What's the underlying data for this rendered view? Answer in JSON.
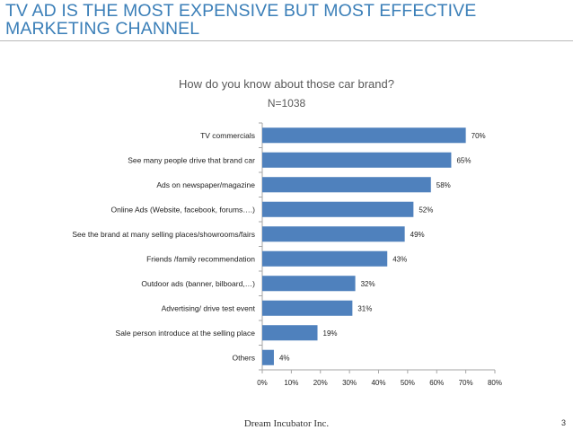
{
  "slide": {
    "title_line1": "TV AD IS THE MOST EXPENSIVE BUT MOST EFFECTIVE",
    "title_line2": "MARKETING CHANNEL",
    "footer": "Dream Incubator Inc.",
    "page_number": "3"
  },
  "colors": {
    "bar": "#4f81bd",
    "title": "#3b7fb8",
    "axis": "#a6a6a6"
  },
  "chart_data": {
    "type": "bar",
    "orientation": "horizontal",
    "title": "How do you know about those car brand?",
    "subtitle": "N=1038",
    "categories": [
      "TV commercials",
      "See many people drive that brand car",
      "Ads on newspaper/magazine",
      "Online Ads (Website, facebook, forums….)",
      "See the brand at many selling places/showrooms/fairs",
      "Friends /family recommendation",
      "Outdoor ads (banner, bilboard,…)",
      "Advertising/ drive test event",
      "Sale person introduce at the selling place",
      "Others"
    ],
    "values": [
      70,
      65,
      58,
      52,
      49,
      43,
      32,
      31,
      19,
      4
    ],
    "value_labels": [
      "70%",
      "65%",
      "58%",
      "52%",
      "49%",
      "43%",
      "32%",
      "31%",
      "19%",
      "4%"
    ],
    "xlim": [
      0,
      80
    ],
    "ticks": [
      0,
      10,
      20,
      30,
      40,
      50,
      60,
      70,
      80
    ],
    "tick_labels": [
      "0%",
      "10%",
      "20%",
      "30%",
      "40%",
      "50%",
      "60%",
      "70%",
      "80%"
    ],
    "xlabel": "",
    "ylabel": "",
    "grid": false,
    "legend": "none"
  }
}
